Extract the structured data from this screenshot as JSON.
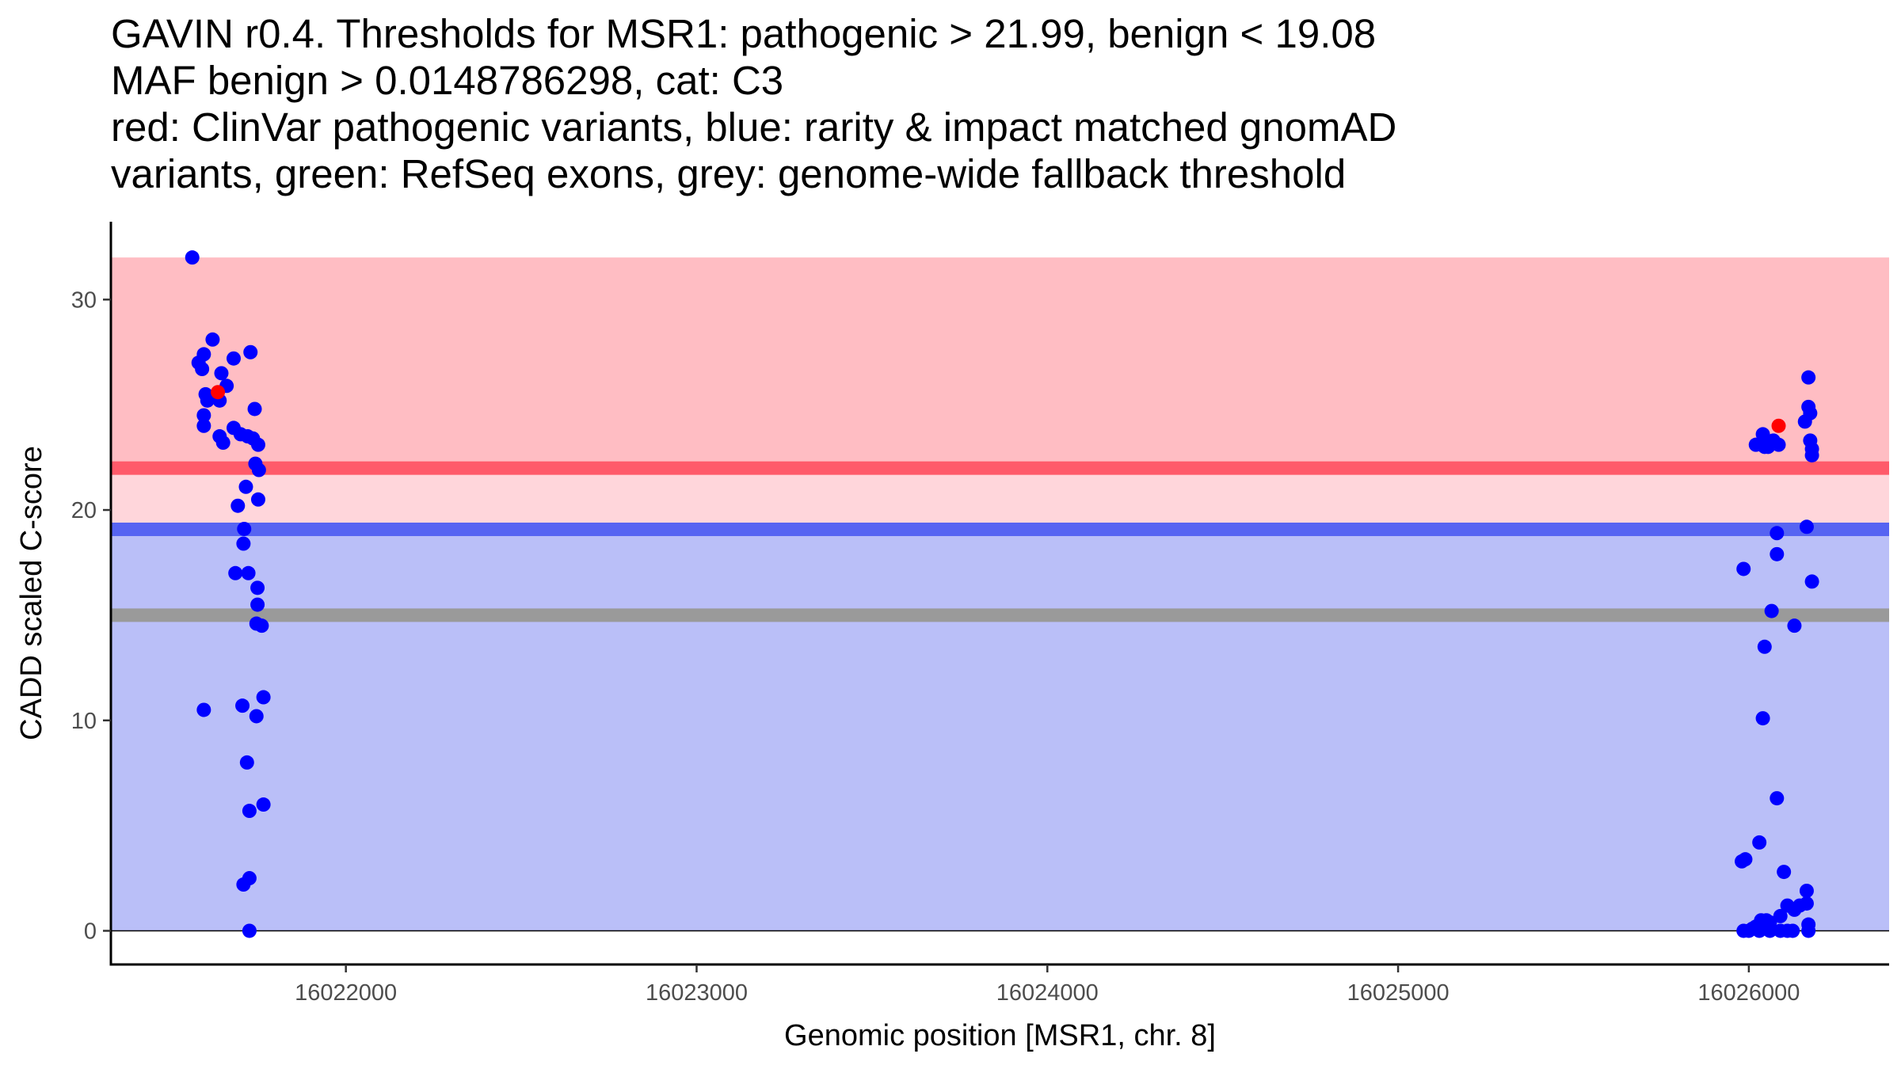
{
  "chart_data": {
    "type": "scatter",
    "title_lines": [
      "GAVIN r0.4. Thresholds for MSR1: pathogenic > 21.99, benign < 19.08",
      "MAF benign > 0.0148786298, cat: C3",
      "red: ClinVar pathogenic variants, blue: rarity & impact matched gnomAD",
      "variants, green: RefSeq exons, grey: genome-wide fallback threshold"
    ],
    "xlabel": "Genomic position [MSR1, chr. 8]",
    "ylabel": "CADD scaled C-score",
    "xlim": [
      16021330,
      16026400
    ],
    "ylim": [
      -1.6,
      33.7
    ],
    "x_ticks": [
      16022000,
      16023000,
      16024000,
      16025000,
      16026000
    ],
    "y_ticks": [
      0,
      10,
      20,
      30
    ],
    "colors": {
      "pathogenic_region": "#ffbdc3",
      "vus_region": "#ffd6db",
      "benign_region": "#babff8",
      "pathogenic_line": "#ff5a6a",
      "benign_line": "#5664f2",
      "fallback_line": "#9a9a9a",
      "gnomad_points": "#0000ff",
      "clinvar_points": "#ff0000"
    },
    "regions": [
      {
        "name": "pathogenic",
        "y_from": 21.99,
        "y_to": 32.0
      },
      {
        "name": "uncertain",
        "y_from": 19.08,
        "y_to": 21.99
      },
      {
        "name": "benign",
        "y_from": 0.0,
        "y_to": 19.08
      }
    ],
    "thresholds": [
      {
        "name": "pathogenic",
        "value": 21.99
      },
      {
        "name": "benign",
        "value": 19.08
      },
      {
        "name": "fallback",
        "value": 15.0
      }
    ],
    "series": [
      {
        "name": "gnomAD variants",
        "color_key": "gnomad_points",
        "points": [
          [
            16021562,
            32.0
          ],
          [
            16021580,
            27.0
          ],
          [
            16021595,
            27.4
          ],
          [
            16021590,
            26.7
          ],
          [
            16021620,
            28.1
          ],
          [
            16021645,
            26.5
          ],
          [
            16021660,
            25.9
          ],
          [
            16021600,
            25.5
          ],
          [
            16021605,
            25.2
          ],
          [
            16021640,
            25.2
          ],
          [
            16021595,
            24.5
          ],
          [
            16021595,
            24.0
          ],
          [
            16021640,
            23.5
          ],
          [
            16021650,
            23.2
          ],
          [
            16021680,
            23.9
          ],
          [
            16021700,
            23.6
          ],
          [
            16021720,
            23.5
          ],
          [
            16021735,
            23.4
          ],
          [
            16021750,
            23.1
          ],
          [
            16021680,
            27.2
          ],
          [
            16021728,
            27.5
          ],
          [
            16021740,
            24.8
          ],
          [
            16021742,
            22.2
          ],
          [
            16021752,
            21.9
          ],
          [
            16021715,
            21.1
          ],
          [
            16021750,
            20.5
          ],
          [
            16021692,
            20.2
          ],
          [
            16021710,
            19.1
          ],
          [
            16021708,
            18.4
          ],
          [
            16021685,
            17.0
          ],
          [
            16021722,
            17.0
          ],
          [
            16021748,
            16.3
          ],
          [
            16021748,
            15.5
          ],
          [
            16021745,
            14.6
          ],
          [
            16021760,
            14.5
          ],
          [
            16021595,
            10.5
          ],
          [
            16021705,
            10.7
          ],
          [
            16021745,
            10.2
          ],
          [
            16021765,
            11.1
          ],
          [
            16021718,
            8.0
          ],
          [
            16021725,
            5.7
          ],
          [
            16021765,
            6.0
          ],
          [
            16021725,
            2.5
          ],
          [
            16021708,
            2.2
          ],
          [
            16021725,
            0.0
          ],
          [
            16025985,
            17.2
          ],
          [
            16026020,
            23.1
          ],
          [
            16026040,
            23.6
          ],
          [
            16026045,
            23.0
          ],
          [
            16026055,
            23.0
          ],
          [
            16026070,
            23.3
          ],
          [
            16026085,
            23.1
          ],
          [
            16026045,
            13.5
          ],
          [
            16026040,
            10.1
          ],
          [
            16026065,
            15.2
          ],
          [
            16026080,
            18.9
          ],
          [
            16026080,
            17.9
          ],
          [
            16026080,
            6.3
          ],
          [
            16026030,
            4.2
          ],
          [
            16026100,
            2.8
          ],
          [
            16026130,
            14.5
          ],
          [
            16026160,
            24.2
          ],
          [
            16026170,
            26.3
          ],
          [
            16026170,
            24.9
          ],
          [
            16026175,
            24.6
          ],
          [
            16026175,
            23.3
          ],
          [
            16026180,
            22.9
          ],
          [
            16026180,
            22.6
          ],
          [
            16026165,
            19.2
          ],
          [
            16026180,
            16.6
          ],
          [
            16025980,
            3.3
          ],
          [
            16025990,
            3.4
          ],
          [
            16026165,
            1.9
          ],
          [
            16026165,
            1.3
          ],
          [
            16026110,
            1.2
          ],
          [
            16026130,
            1.0
          ],
          [
            16026145,
            1.2
          ],
          [
            16026090,
            0.7
          ],
          [
            16026035,
            0.5
          ],
          [
            16026050,
            0.5
          ],
          [
            16026060,
            0.4
          ],
          [
            16026020,
            0.2
          ],
          [
            16026170,
            0.3
          ],
          [
            16025985,
            0.0
          ],
          [
            16026000,
            0.0
          ],
          [
            16026010,
            0.1
          ],
          [
            16026030,
            0.0
          ],
          [
            16026060,
            0.0
          ],
          [
            16026090,
            0.0
          ],
          [
            16026110,
            0.0
          ],
          [
            16026125,
            0.0
          ],
          [
            16026170,
            0.0
          ]
        ]
      },
      {
        "name": "ClinVar pathogenic variants",
        "color_key": "clinvar_points",
        "points": [
          [
            16021635,
            25.6
          ],
          [
            16026085,
            24.0
          ]
        ]
      }
    ]
  }
}
